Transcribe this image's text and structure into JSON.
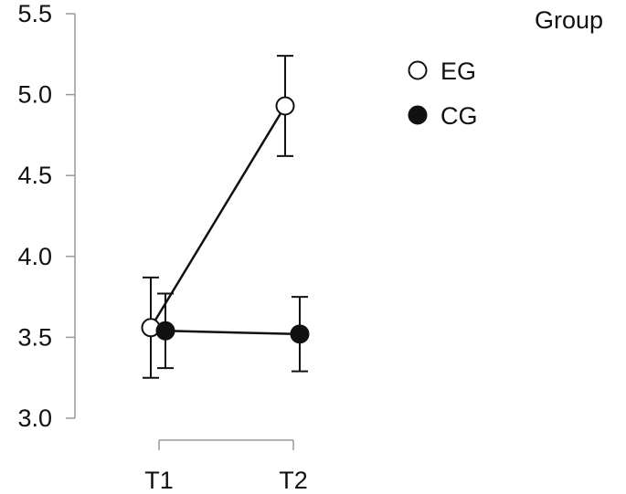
{
  "chart_data": {
    "type": "line",
    "title": "",
    "xlabel": "",
    "ylabel": "",
    "categories": [
      "T1",
      "T2"
    ],
    "ylim": [
      3.0,
      5.5
    ],
    "yticks": [
      "3.0",
      "3.5",
      "4.0",
      "4.5",
      "5.0",
      "5.5"
    ],
    "grid": false,
    "legend": {
      "title": "Group",
      "placement": "top-right"
    },
    "series": [
      {
        "name": "EG",
        "marker": "open-circle",
        "values": [
          3.56,
          4.93
        ],
        "error_low": [
          3.25,
          4.62
        ],
        "error_high": [
          3.87,
          5.24
        ]
      },
      {
        "name": "CG",
        "marker": "filled-circle",
        "values": [
          3.54,
          3.52
        ],
        "error_low": [
          3.31,
          3.29
        ],
        "error_high": [
          3.77,
          3.75
        ]
      }
    ]
  }
}
